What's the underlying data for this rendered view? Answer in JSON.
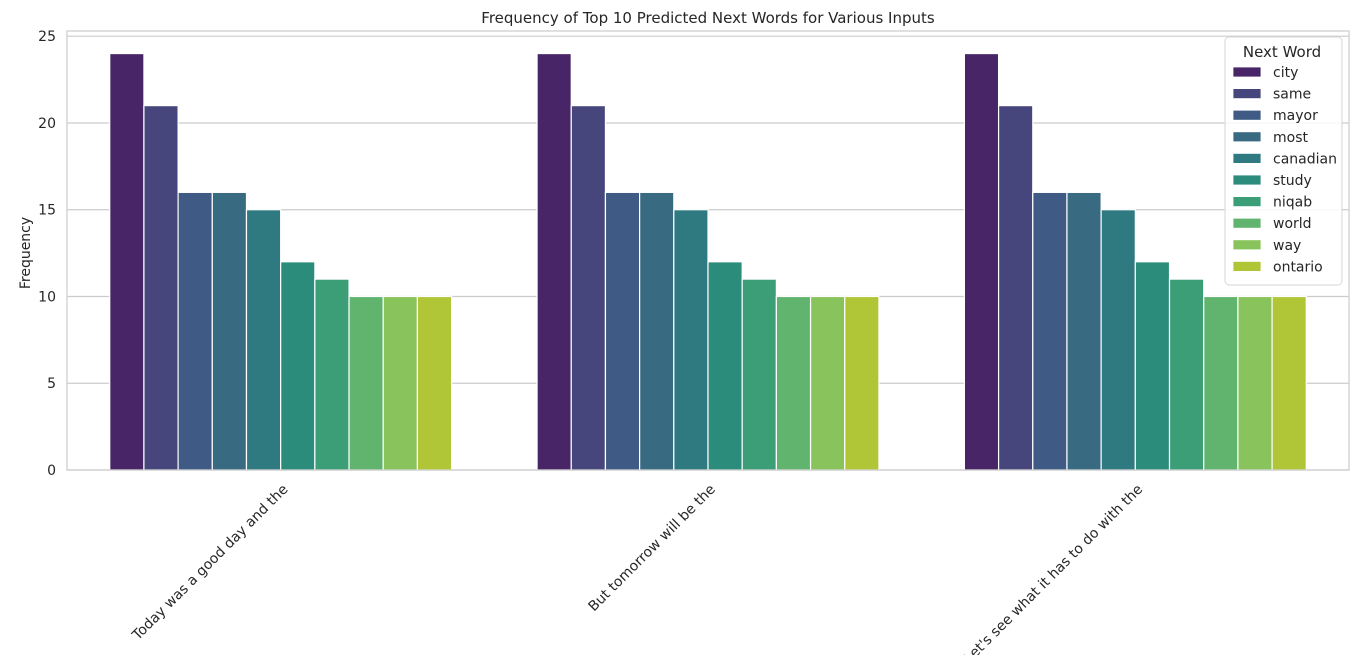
{
  "chart_data": {
    "type": "bar",
    "title": "Frequency of Top 10 Predicted Next Words for Various Inputs",
    "xlabel": "",
    "ylabel": "Frequency",
    "ylim": [
      0,
      25.3
    ],
    "yticks": [
      "0",
      "5",
      "10",
      "15",
      "20",
      "25"
    ],
    "grid": "horizontal",
    "legend_title": "Next Word",
    "legend_position": "top-right",
    "categories": [
      "Today was a good day and the",
      "But tomorrow will be the",
      "Let's see what it has to do with the"
    ],
    "series": [
      {
        "name": "city",
        "color": "#482566",
        "values": [
          24,
          24,
          24
        ]
      },
      {
        "name": "same",
        "color": "#46467c",
        "values": [
          21,
          21,
          21
        ]
      },
      {
        "name": "mayor",
        "color": "#3f5a84",
        "values": [
          16,
          16,
          16
        ]
      },
      {
        "name": "most",
        "color": "#386b82",
        "values": [
          16,
          16,
          16
        ]
      },
      {
        "name": "canadian",
        "color": "#2e7a80",
        "values": [
          15,
          15,
          15
        ]
      },
      {
        "name": "study",
        "color": "#2b8c7c",
        "values": [
          12,
          12,
          12
        ]
      },
      {
        "name": "niqab",
        "color": "#3b9e77",
        "values": [
          11,
          11,
          11
        ]
      },
      {
        "name": "world",
        "color": "#60b46e",
        "values": [
          10,
          10,
          10
        ]
      },
      {
        "name": "way",
        "color": "#88c45b",
        "values": [
          10,
          10,
          10
        ]
      },
      {
        "name": "ontario",
        "color": "#b1c637",
        "values": [
          10,
          10,
          10
        ]
      }
    ]
  }
}
